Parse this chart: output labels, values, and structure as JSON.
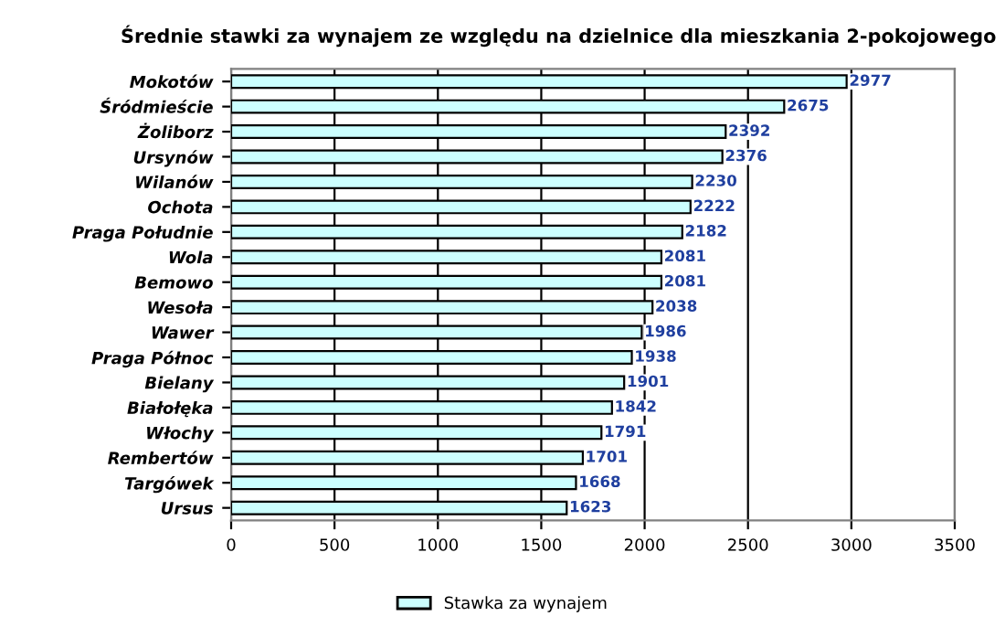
{
  "chart_data": {
    "type": "bar",
    "orientation": "horizontal",
    "title": "Średnie stawki za wynajem ze względu na dzielnice dla mieszkania 2-pokojowego",
    "categories": [
      "Mokotów",
      "Śródmieście",
      "Żoliborz",
      "Ursynów",
      "Wilanów",
      "Ochota",
      "Praga Południe",
      "Wola",
      "Bemowo",
      "Wesoła",
      "Wawer",
      "Praga Północ",
      "Bielany",
      "Białołęka",
      "Włochy",
      "Rembertów",
      "Targówek",
      "Ursus"
    ],
    "series": [
      {
        "name": "Stawka za wynajem",
        "color": "#ccffff",
        "values": [
          2977,
          2675,
          2392,
          2376,
          2230,
          2222,
          2182,
          2081,
          2081,
          2038,
          1986,
          1938,
          1901,
          1842,
          1791,
          1701,
          1668,
          1623
        ]
      }
    ],
    "xlim": [
      0,
      3500
    ],
    "xticks": [
      0,
      500,
      1000,
      1500,
      2000,
      2500,
      3000,
      3500
    ],
    "grid": "x",
    "legend": "bottom",
    "data_labels": true
  }
}
